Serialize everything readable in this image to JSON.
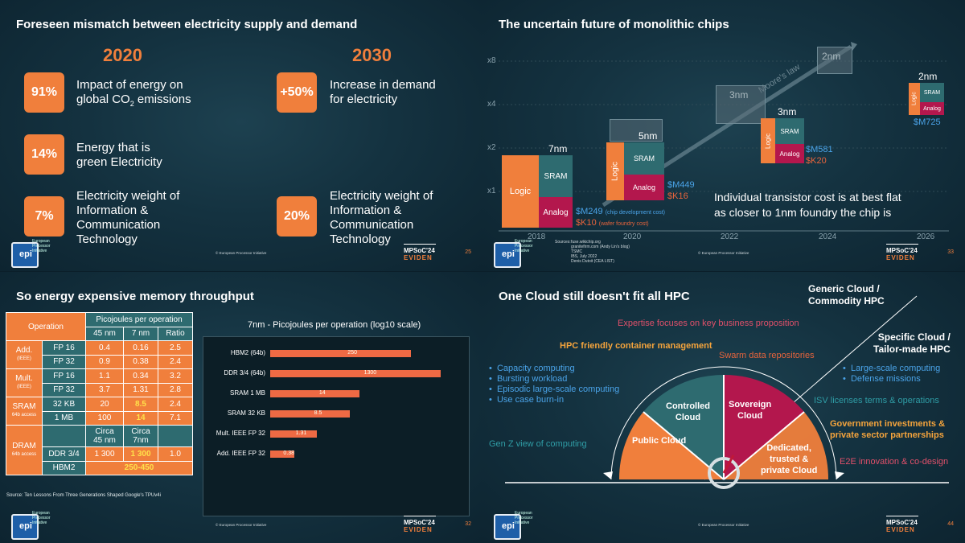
{
  "slides": {
    "s1": {
      "title": "Foreseen mismatch between electricity supply and demand",
      "year_a": "2020",
      "year_b": "2030",
      "stats_left": [
        {
          "pct": "91%",
          "text1": "Impact of energy on",
          "text2": "global CO",
          "sub": "2",
          "text3": " emissions"
        },
        {
          "pct": "14%",
          "text1": "Energy that is",
          "text2": "green Electricity"
        },
        {
          "pct": "7%",
          "text1": "Electricity weight of",
          "text2": "Information &",
          "text3": "Communication",
          "text4": "Technology"
        }
      ],
      "stats_right": [
        {
          "pct": "+50%",
          "text1": "Increase in demand",
          "text2": "for electricity"
        },
        {
          "pct": "20%",
          "text1": "Electricity weight of",
          "text2": "Information &",
          "text3": "Communication",
          "text4": "Technology"
        }
      ],
      "page": "25"
    },
    "s2": {
      "title": "The uncertain future of monolithic chips",
      "y_ticks": [
        "x8",
        "x4",
        "x2",
        "x1"
      ],
      "x_ticks": [
        "2018",
        "2020",
        "2022",
        "2024",
        "2026"
      ],
      "moore": "Moore's law",
      "ghost": [
        "3nm",
        "2nm"
      ],
      "nodes": [
        "7nm",
        "5nm",
        "3nm",
        "2nm"
      ],
      "block_logic": "Logic",
      "block_sram": "SRAM",
      "block_analog": "Analog",
      "cost_7_m": "$M249",
      "cost_7_m_note": "(chip development cost)",
      "cost_7_k": "$K10",
      "cost_7_k_note": "(wafer foundry cost)",
      "cost_5_m": "$M449",
      "cost_5_k": "$K16",
      "cost_3_m": "$M581",
      "cost_3_k": "$K20",
      "cost_2_m": "$M725",
      "note1": "Individual transistor cost is at best flat",
      "note2": "as closer to 1nm foundry the chip  is",
      "sources_label": "Sources:",
      "sources": [
        "fuse.wikichip.org",
        "granitefirm.com (Andy Lin's blog)",
        "TSMC",
        "IBS, July 2022",
        "Denis Dutoit (CEA LIST)"
      ],
      "page": "33"
    },
    "s3": {
      "title": "So energy expensive memory throughput",
      "table": {
        "h_operation": "Operation",
        "h_pj": "Picojoules per operation",
        "h_45": "45 nm",
        "h_7": "7 nm",
        "h_ratio": "Ratio",
        "add": "Add.",
        "add_sub": "(IEEE)",
        "mult": "Mult.",
        "mult_sub": "(IEEE)",
        "sram": "SRAM",
        "sram_sub": "64b access",
        "dram": "DRAM",
        "dram_sub": "64b access",
        "rows": [
          [
            "FP 16",
            "0.4",
            "0.16",
            "2.5"
          ],
          [
            "FP 32",
            "0.9",
            "0.38",
            "2.4"
          ],
          [
            "FP 16",
            "1.1",
            "0.34",
            "3.2"
          ],
          [
            "FP 32",
            "3.7",
            "1.31",
            "2.8"
          ],
          [
            "32 KB",
            "20",
            "8.5",
            "2.4"
          ],
          [
            "1 MB",
            "100",
            "14",
            "7.1"
          ]
        ],
        "circa45": "Circa",
        "circa45b": "45 nm",
        "circa7": "Circa",
        "circa7b": "7nm",
        "ddr": [
          "DDR 3/4",
          "1 300",
          "1 300",
          "1.0"
        ],
        "hbm": [
          "HBM2",
          "250-450"
        ]
      },
      "source": "Source: Ten Lessons From Three Generations Shaped Google's TPUv4i",
      "page": "32"
    },
    "s4": {
      "title": "One Cloud still doesn't fit all HPC",
      "generic": "Generic Cloud /",
      "generic2": "Commodity HPC",
      "specific": "Specific Cloud /",
      "specific2": "Tailor-made HPC",
      "expertise": "Expertise focuses on key business proposition",
      "hpc_friendly": "HPC friendly container management",
      "swarm": "Swarm data repositories",
      "left_list": [
        "Capacity computing",
        "Bursting workload",
        "Episodic large-scale computing",
        "Use case burn-in"
      ],
      "right_list": [
        "Large-scale computing",
        "Defense missions"
      ],
      "isv": "ISV licenses terms & operations",
      "gov1": "Government investments &",
      "gov2": "private sector partnerships",
      "genz": "Gen Z view of computing",
      "e2e": "E2E innovation & co-design",
      "seg_public": "Public Cloud",
      "seg_controlled1": "Controlled",
      "seg_controlled2": "Cloud",
      "seg_sovereign1": "Sovereign",
      "seg_sovereign2": "Cloud",
      "seg_ded1": "Dedicated,",
      "seg_ded2": "trusted &",
      "seg_ded3": "private Cloud",
      "page": "44"
    }
  },
  "branding": {
    "logo": "epi",
    "logo_caption": "European Processor Initiative",
    "copyright": "© European Processor Initiative",
    "event": "MPSoC'24",
    "sponsor": "EVIDEN"
  },
  "chart_data": {
    "type": "bar",
    "title": "7nm - Picojoules per operation (log10 scale)",
    "categories": [
      "HBM2 (64b)",
      "DDR 3/4 (64b)",
      "SRAM 1 MB",
      "SRAM 32 KB",
      "Mult. IEEE FP 32",
      "Add. IEEE FP 32"
    ],
    "values": [
      250,
      1300,
      14,
      8.5,
      1.31,
      0.38
    ],
    "labels": [
      "250",
      "1300",
      "14",
      "8.5",
      "1.31",
      "0.38"
    ],
    "scale": "log",
    "orientation": "horizontal"
  }
}
